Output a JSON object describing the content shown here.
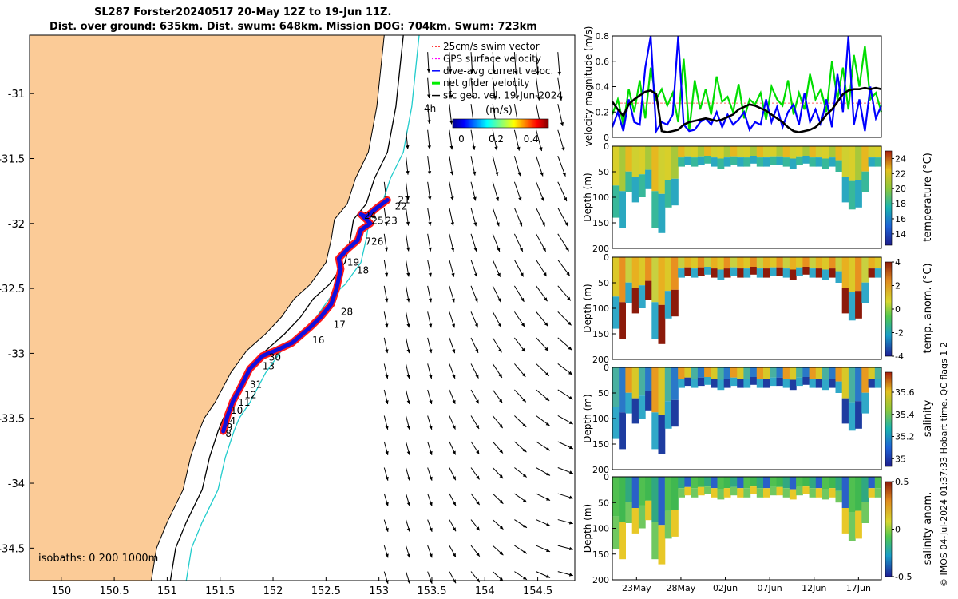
{
  "title_line1": "SL287 Forster20240517 20-May 12Z to 19-Jun 11Z.",
  "title_line2": "Dist. over ground: 635km. Dist. swum: 648km. Mission DOG: 704km. Swum: 723km",
  "chart_data": [
    {
      "type": "map",
      "xlim": [
        149.7,
        154.85
      ],
      "ylim": [
        -34.75,
        -30.55
      ],
      "x_ticks": [
        "150",
        "150.5",
        "151",
        "151.5",
        "152",
        "152.5",
        "153",
        "153.5",
        "154",
        "154.5"
      ],
      "y_ticks": [
        "-31",
        "-31.5",
        "-32",
        "-32.5",
        "-33",
        "-33.5",
        "-34",
        "-34.5"
      ],
      "legend": [
        {
          "label": "25cm/s swim vector",
          "color": "#ff0000"
        },
        {
          "label": "GPS surface velocity",
          "color": "#ff00ff"
        },
        {
          "label": "dive-avg current veloc.",
          "color": "#0000ff"
        },
        {
          "label": "net glider velocity",
          "color": "#00ee00"
        },
        {
          "label": "sfc geo. vel. 19-Jun-2024",
          "color": "#000000"
        }
      ],
      "legend_extra": "4h",
      "colorbar": {
        "label": "(m/s)",
        "ticks": [
          "0",
          "0.2",
          "0.4"
        ],
        "range": [
          -0.05,
          0.5
        ]
      },
      "isobaths_label": "isobaths: 0   200  1000m",
      "track_labels": [
        {
          "text": "21",
          "lon": 153.15,
          "lat": -31.82
        },
        {
          "text": "22",
          "lon": 153.12,
          "lat": -31.87
        },
        {
          "text": "24",
          "lon": 152.83,
          "lat": -31.94
        },
        {
          "text": "25",
          "lon": 152.9,
          "lat": -31.98
        },
        {
          "text": "23",
          "lon": 153.03,
          "lat": -31.98
        },
        {
          "text": "726",
          "lon": 152.84,
          "lat": -32.14
        },
        {
          "text": "19",
          "lon": 152.67,
          "lat": -32.3
        },
        {
          "text": "18",
          "lon": 152.76,
          "lat": -32.36
        },
        {
          "text": "28",
          "lon": 152.61,
          "lat": -32.68
        },
        {
          "text": "17",
          "lon": 152.54,
          "lat": -32.78
        },
        {
          "text": "16",
          "lon": 152.34,
          "lat": -32.9
        },
        {
          "text": "30",
          "lon": 151.93,
          "lat": -33.03
        },
        {
          "text": "13",
          "lon": 151.87,
          "lat": -33.1
        },
        {
          "text": "31",
          "lon": 151.75,
          "lat": -33.24
        },
        {
          "text": "12",
          "lon": 151.7,
          "lat": -33.32
        },
        {
          "text": "11",
          "lon": 151.64,
          "lat": -33.38
        },
        {
          "text": "10",
          "lon": 151.57,
          "lat": -33.44
        },
        {
          "text": "4",
          "lon": 151.56,
          "lat": -33.52
        },
        {
          "text": "9",
          "lon": 151.53,
          "lat": -33.57
        },
        {
          "text": "8",
          "lon": 151.52,
          "lat": -33.62
        }
      ]
    },
    {
      "type": "line",
      "ylabel": "velocity magnitude (m/s)",
      "ylim": [
        0,
        0.8
      ],
      "y_ticks": [
        "0",
        "0.2",
        "0.4",
        "0.6",
        "0.8"
      ],
      "series": [
        {
          "color": "#00dd00",
          "values": [
            0.18,
            0.3,
            0.1,
            0.38,
            0.2,
            0.45,
            0.15,
            0.55,
            0.3,
            0.38,
            0.25,
            0.35,
            0.12,
            0.62,
            0.05,
            0.45,
            0.22,
            0.38,
            0.18,
            0.48,
            0.28,
            0.32,
            0.2,
            0.42,
            0.15,
            0.3,
            0.26,
            0.35,
            0.14,
            0.4,
            0.3,
            0.25,
            0.45,
            0.18,
            0.35,
            0.22,
            0.5,
            0.3,
            0.38,
            0.2,
            0.6,
            0.3,
            0.55,
            0.22,
            0.65,
            0.4,
            0.72,
            0.3,
            0.35,
            0.2
          ]
        },
        {
          "color": "#0000ff",
          "values": [
            0.08,
            0.2,
            0.05,
            0.3,
            0.12,
            0.1,
            0.55,
            0.8,
            0.05,
            0.12,
            0.1,
            0.18,
            0.8,
            0.1,
            0.05,
            0.06,
            0.12,
            0.15,
            0.1,
            0.2,
            0.08,
            0.18,
            0.1,
            0.14,
            0.2,
            0.06,
            0.12,
            0.1,
            0.3,
            0.12,
            0.24,
            0.08,
            0.2,
            0.26,
            0.1,
            0.35,
            0.12,
            0.22,
            0.1,
            0.3,
            0.08,
            0.5,
            0.2,
            0.8,
            0.1,
            0.3,
            0.05,
            0.4,
            0.15,
            0.25
          ]
        },
        {
          "color": "#000000",
          "values": [
            0.28,
            0.22,
            0.17,
            0.26,
            0.3,
            0.33,
            0.36,
            0.37,
            0.34,
            0.05,
            0.04,
            0.05,
            0.06,
            0.1,
            0.12,
            0.13,
            0.14,
            0.15,
            0.14,
            0.13,
            0.14,
            0.16,
            0.18,
            0.22,
            0.24,
            0.26,
            0.25,
            0.23,
            0.21,
            0.18,
            0.15,
            0.12,
            0.08,
            0.05,
            0.04,
            0.05,
            0.06,
            0.08,
            0.12,
            0.18,
            0.22,
            0.28,
            0.34,
            0.37,
            0.38,
            0.38,
            0.39,
            0.38,
            0.39,
            0.38
          ]
        }
      ]
    },
    {
      "type": "heatmap",
      "ylabel": "Depth (m)",
      "cbar_label": "temperature (°C)",
      "cbar_ticks": [
        "24",
        "22",
        "20",
        "18",
        "16",
        "14"
      ],
      "range": [
        12.5,
        25
      ],
      "y_ticks": [
        "0",
        "50",
        "100",
        "150",
        "200"
      ]
    },
    {
      "type": "heatmap",
      "ylabel": "Depth (m)",
      "cbar_label": "temp. anom. (°C)",
      "cbar_ticks": [
        "4",
        "2",
        "0",
        "-2",
        "-4"
      ],
      "range": [
        -4,
        4
      ],
      "y_ticks": [
        "0",
        "50",
        "100",
        "150",
        "200"
      ]
    },
    {
      "type": "heatmap",
      "ylabel": "Depth (m)",
      "cbar_label": "salinity",
      "cbar_ticks": [
        "35.6",
        "35.4",
        "35.2",
        "35"
      ],
      "range": [
        34.93,
        35.78
      ],
      "y_ticks": [
        "0",
        "50",
        "100",
        "150",
        "200"
      ]
    },
    {
      "type": "heatmap",
      "ylabel": "Depth (m)",
      "cbar_label": "salinity anom.",
      "cbar_ticks": [
        "0.5",
        "0",
        "-0.5"
      ],
      "range": [
        -0.5,
        0.5
      ],
      "y_ticks": [
        "0",
        "50",
        "100",
        "150",
        "200"
      ],
      "x_ticks": [
        "23May",
        "28May",
        "02Jun",
        "07Jun",
        "12Jun",
        "17Jun"
      ]
    }
  ],
  "side_note": "© IMOS 04-Jul-2024 01:37:33 Hobart time. QC flags 1  2"
}
